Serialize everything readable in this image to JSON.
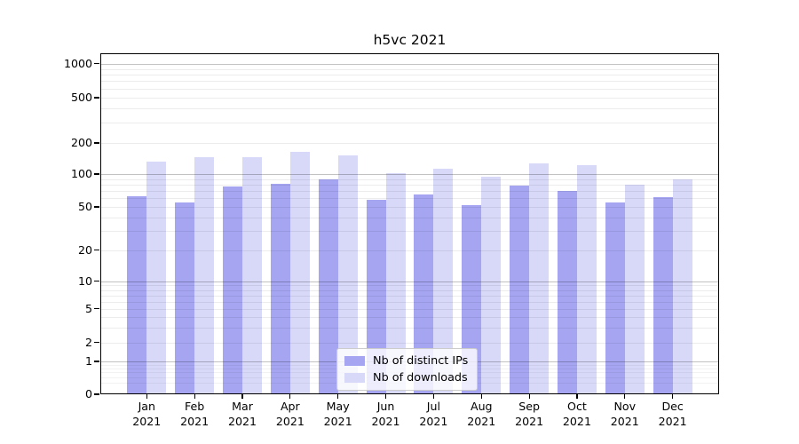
{
  "figure": {
    "title": "h5vc 2021"
  },
  "chart_data": {
    "type": "bar",
    "title": "h5vc 2021",
    "categories": [
      "Jan 2021",
      "Feb 2021",
      "Mar 2021",
      "Apr 2021",
      "May 2021",
      "Jun 2021",
      "Jul 2021",
      "Aug 2021",
      "Sep 2021",
      "Oct 2021",
      "Nov 2021",
      "Dec 2021"
    ],
    "x_tick_months": [
      "Jan",
      "Feb",
      "Mar",
      "Apr",
      "May",
      "Jun",
      "Jul",
      "Aug",
      "Sep",
      "Oct",
      "Nov",
      "Dec"
    ],
    "x_tick_year": "2021",
    "series": [
      {
        "name": "Nb of distinct IPs",
        "color": "#a5a5f2",
        "values": [
          63,
          55,
          77,
          82,
          90,
          58,
          65,
          52,
          79,
          70,
          55,
          62
        ]
      },
      {
        "name": "Nb of downloads",
        "color": "#d8d8f9",
        "values": [
          131,
          145,
          145,
          163,
          151,
          103,
          112,
          95,
          127,
          122,
          80,
          90
        ]
      }
    ],
    "y_axis": {
      "scale": "log (compressed below 1, with 0 baseline)",
      "tick_labels": [
        "1000",
        "500",
        "200",
        "100",
        "50",
        "20",
        "10",
        "5",
        "2",
        "1",
        "0"
      ],
      "tick_values": [
        1000,
        500,
        200,
        100,
        50,
        20,
        10,
        5,
        2,
        1,
        0
      ]
    },
    "legend": {
      "position": "lower-center",
      "entries": [
        "Nb of distinct IPs",
        "Nb of downloads"
      ]
    },
    "grid": "horizontal major+minor"
  },
  "colors": {
    "bar_dark": "#a5a5f2",
    "bar_light": "#d8d8f9",
    "major_grid_rgba": "rgba(0,0,0,0.24)",
    "minor_grid_rgba": "rgba(0,0,0,0.075)",
    "sub1_grid_rgba": "rgba(0,0,0,0.05)",
    "spine": "#000000",
    "legend_border": "#cccccc",
    "text": "#000000"
  }
}
